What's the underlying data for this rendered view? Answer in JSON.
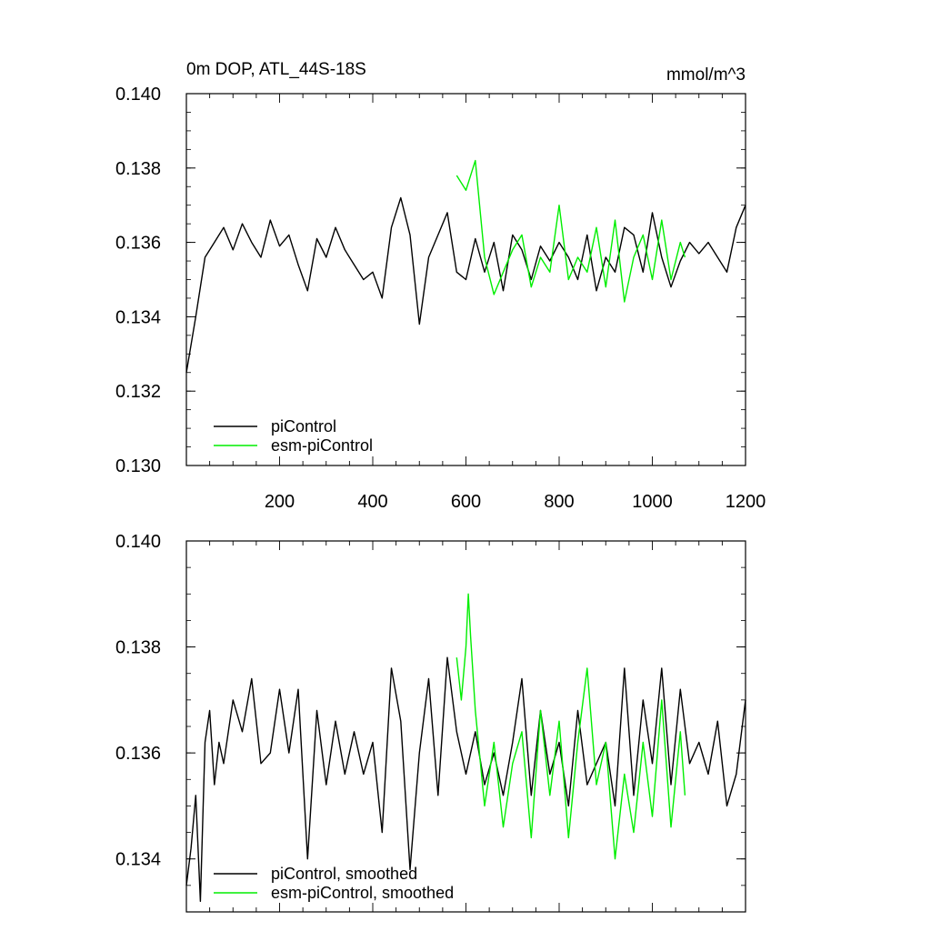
{
  "chart_data": [
    {
      "type": "line",
      "title": "0m DOP, ATL_44S-18S",
      "units": "mmol/m^3",
      "xlim": [
        0,
        1200
      ],
      "ylim": [
        0.13,
        0.14
      ],
      "x_ticks": [
        200,
        400,
        600,
        800,
        1000,
        1200
      ],
      "y_ticks": [
        "0.130",
        "0.132",
        "0.134",
        "0.136",
        "0.138",
        "0.140"
      ],
      "grid": false,
      "legend_position": "bottom-left",
      "series": [
        {
          "name": "piControl",
          "color": "#000000",
          "x": [
            0,
            20,
            40,
            60,
            80,
            100,
            120,
            140,
            160,
            180,
            200,
            220,
            240,
            260,
            280,
            300,
            320,
            340,
            360,
            380,
            400,
            420,
            440,
            460,
            480,
            500,
            520,
            540,
            560,
            580,
            600,
            620,
            640,
            660,
            680,
            700,
            720,
            740,
            760,
            780,
            800,
            820,
            840,
            860,
            880,
            900,
            920,
            940,
            960,
            980,
            1000,
            1020,
            1040,
            1060,
            1080,
            1100,
            1120,
            1140,
            1160,
            1180,
            1200
          ],
          "y": [
            0.1325,
            0.134,
            0.1356,
            0.136,
            0.1364,
            0.1358,
            0.1365,
            0.136,
            0.1356,
            0.1366,
            0.1359,
            0.1362,
            0.1354,
            0.1347,
            0.1361,
            0.1356,
            0.1364,
            0.1358,
            0.1354,
            0.135,
            0.1352,
            0.1345,
            0.1364,
            0.1372,
            0.1362,
            0.1338,
            0.1356,
            0.1362,
            0.1368,
            0.1352,
            0.135,
            0.1361,
            0.1352,
            0.136,
            0.1347,
            0.1362,
            0.1358,
            0.135,
            0.1359,
            0.1355,
            0.136,
            0.1356,
            0.135,
            0.1362,
            0.1347,
            0.1356,
            0.1352,
            0.1364,
            0.1362,
            0.1352,
            0.1368,
            0.1356,
            0.1348,
            0.1355,
            0.136,
            0.1357,
            0.136,
            0.1356,
            0.1352,
            0.1364,
            0.137
          ]
        },
        {
          "name": "esm-piControl",
          "color": "#00ee00",
          "x": [
            580,
            600,
            620,
            640,
            660,
            680,
            700,
            720,
            740,
            760,
            780,
            800,
            820,
            840,
            860,
            880,
            900,
            920,
            940,
            960,
            980,
            1000,
            1020,
            1040,
            1060,
            1070
          ],
          "y": [
            0.1378,
            0.1374,
            0.1382,
            0.1356,
            0.1346,
            0.1352,
            0.1358,
            0.1362,
            0.1348,
            0.1356,
            0.1352,
            0.137,
            0.135,
            0.1356,
            0.1352,
            0.1364,
            0.1348,
            0.1366,
            0.1344,
            0.1356,
            0.1362,
            0.135,
            0.1366,
            0.135,
            0.136,
            0.1356
          ]
        }
      ]
    },
    {
      "type": "line",
      "title": "",
      "xlim": [
        0,
        1200
      ],
      "ylim": [
        0.133,
        0.14
      ],
      "y_ticks": [
        "0.134",
        "0.136",
        "0.138",
        "0.140"
      ],
      "grid": false,
      "legend_position": "bottom-left",
      "series": [
        {
          "name": "piControl, smoothed",
          "color": "#000000",
          "x": [
            0,
            10,
            20,
            30,
            40,
            50,
            60,
            70,
            80,
            100,
            120,
            140,
            160,
            180,
            200,
            220,
            240,
            260,
            280,
            300,
            320,
            340,
            360,
            380,
            400,
            420,
            440,
            460,
            480,
            500,
            520,
            540,
            560,
            580,
            600,
            620,
            640,
            660,
            680,
            700,
            720,
            740,
            760,
            780,
            800,
            820,
            840,
            860,
            880,
            900,
            920,
            940,
            960,
            980,
            1000,
            1020,
            1040,
            1060,
            1080,
            1100,
            1120,
            1140,
            1160,
            1180,
            1200
          ],
          "y": [
            0.1335,
            0.1342,
            0.1352,
            0.1332,
            0.1362,
            0.1368,
            0.1354,
            0.1362,
            0.1358,
            0.137,
            0.1364,
            0.1374,
            0.1358,
            0.136,
            0.1372,
            0.136,
            0.1372,
            0.134,
            0.1368,
            0.1354,
            0.1366,
            0.1356,
            0.1364,
            0.1356,
            0.1362,
            0.1345,
            0.1376,
            0.1366,
            0.1338,
            0.136,
            0.1374,
            0.1352,
            0.1378,
            0.1364,
            0.1356,
            0.1364,
            0.1354,
            0.136,
            0.1352,
            0.1362,
            0.1374,
            0.1352,
            0.1368,
            0.1356,
            0.1362,
            0.135,
            0.1368,
            0.1354,
            0.1358,
            0.1362,
            0.135,
            0.1376,
            0.1352,
            0.137,
            0.1358,
            0.1376,
            0.1354,
            0.1372,
            0.1358,
            0.1362,
            0.1356,
            0.1366,
            0.135,
            0.1356,
            0.137
          ]
        },
        {
          "name": "esm-piControl, smoothed",
          "color": "#00ee00",
          "x": [
            580,
            590,
            600,
            605,
            610,
            620,
            640,
            660,
            680,
            700,
            720,
            740,
            760,
            780,
            800,
            820,
            840,
            860,
            880,
            900,
            920,
            940,
            960,
            980,
            1000,
            1020,
            1040,
            1060,
            1070
          ],
          "y": [
            0.1378,
            0.137,
            0.138,
            0.139,
            0.1382,
            0.1368,
            0.135,
            0.1362,
            0.1346,
            0.1358,
            0.1364,
            0.1344,
            0.1368,
            0.1352,
            0.1366,
            0.1344,
            0.1362,
            0.1376,
            0.1354,
            0.1362,
            0.134,
            0.1356,
            0.1345,
            0.1362,
            0.1348,
            0.137,
            0.1346,
            0.1364,
            0.1352
          ]
        }
      ]
    }
  ]
}
